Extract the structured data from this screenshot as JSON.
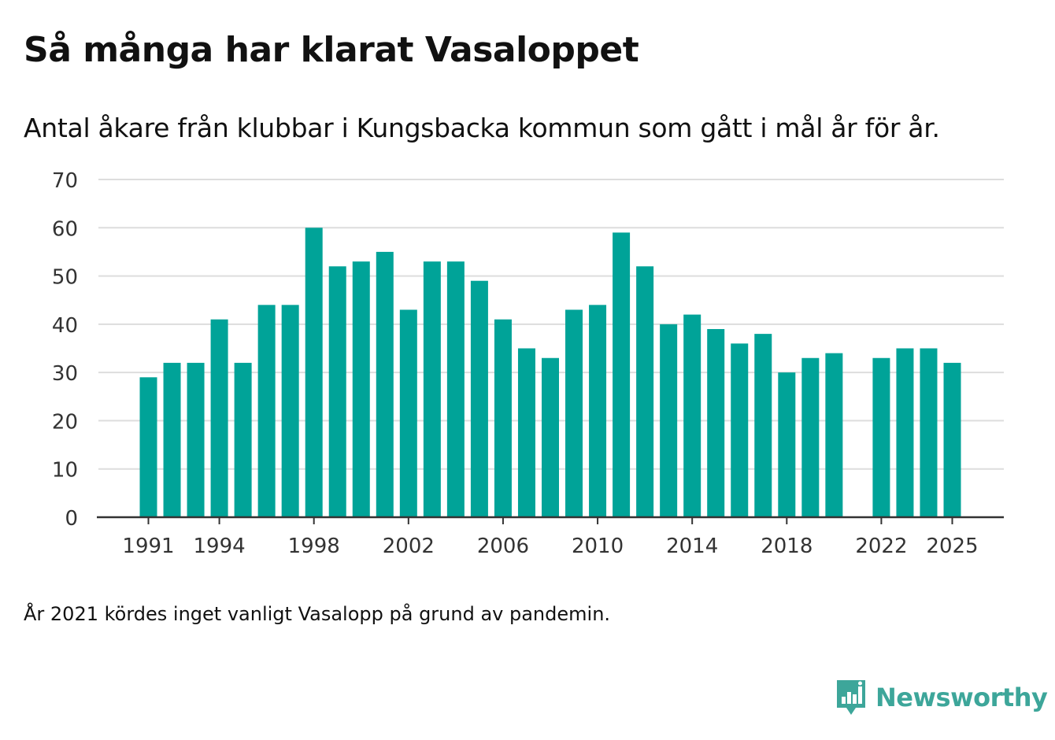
{
  "header": {
    "title": "Så många har klarat Vasaloppet",
    "subtitle": "Antal åkare från klubbar i Kungsbacka kommun som gått i mål år för år."
  },
  "footer": {
    "note": "År 2021 kördes inget vanligt Vasalopp på grund av pandemin.",
    "brand": "Newsworthy"
  },
  "colors": {
    "bar": "#00a398",
    "grid": "#dddddd",
    "axis": "#333333",
    "brand": "#3da69a"
  },
  "chart_data": {
    "type": "bar",
    "title": "Så många har klarat Vasaloppet",
    "subtitle": "Antal åkare från klubbar i Kungsbacka kommun som gått i mål år för år.",
    "xlabel": "",
    "ylabel": "",
    "ylim": [
      0,
      70
    ],
    "yticks": [
      0,
      10,
      20,
      30,
      40,
      50,
      60,
      70
    ],
    "xlim": [
      1991,
      2025
    ],
    "xticks": [
      1991,
      1994,
      1998,
      2002,
      2006,
      2010,
      2014,
      2018,
      2022,
      2025
    ],
    "grid": true,
    "categories": [
      1991,
      1992,
      1993,
      1994,
      1995,
      1996,
      1997,
      1998,
      1999,
      2000,
      2001,
      2002,
      2003,
      2004,
      2005,
      2006,
      2007,
      2008,
      2009,
      2010,
      2011,
      2012,
      2013,
      2014,
      2015,
      2016,
      2017,
      2018,
      2019,
      2020,
      2021,
      2022,
      2023,
      2024,
      2025
    ],
    "values": [
      29,
      32,
      32,
      41,
      32,
      44,
      44,
      60,
      52,
      53,
      55,
      43,
      53,
      53,
      49,
      41,
      35,
      33,
      43,
      44,
      59,
      52,
      40,
      42,
      39,
      36,
      38,
      30,
      33,
      34,
      null,
      33,
      35,
      35,
      32
    ]
  }
}
